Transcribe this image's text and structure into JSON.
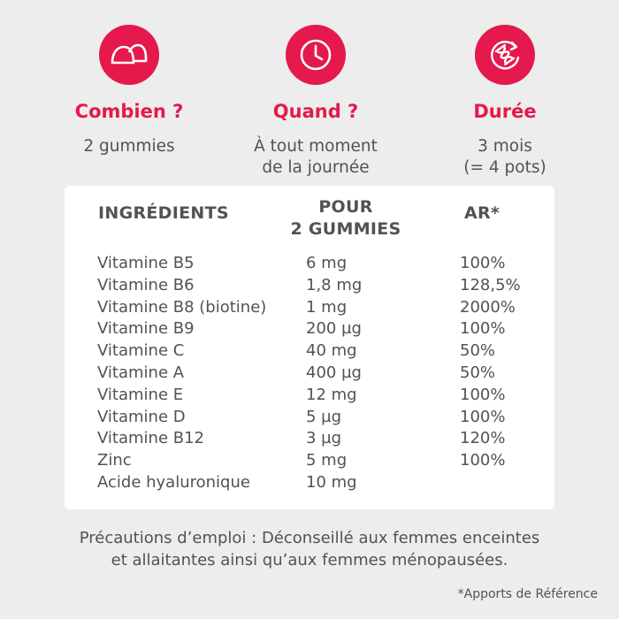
{
  "colors": {
    "accent": "#e5194b",
    "text": "#4f5357",
    "background": "#ededee",
    "card": "#ffffff"
  },
  "info": [
    {
      "icon": "gummies-icon",
      "title": "Combien ?",
      "lines": [
        "2 gummies"
      ]
    },
    {
      "icon": "clock-icon",
      "title": "Quand ?",
      "lines": [
        "À tout moment",
        "de la journée"
      ]
    },
    {
      "icon": "hourglass-icon",
      "title": "Durée",
      "lines": [
        "3 mois",
        "(= 4 pots)"
      ]
    }
  ],
  "table": {
    "headers": {
      "ingredients": "INGRÉDIENTS",
      "pour_line1": "POUR",
      "pour_line2": "2 GUMMIES",
      "ar": "AR*"
    },
    "rows": [
      {
        "name": "Vitamine B5",
        "qty": "6 mg",
        "ar": "100%"
      },
      {
        "name": "Vitamine B6",
        "qty": "1,8 mg",
        "ar": "128,5%"
      },
      {
        "name": "Vitamine B8 (biotine)",
        "qty": "1 mg",
        "ar": "2000%"
      },
      {
        "name": "Vitamine B9",
        "qty": "200 µg",
        "ar": "100%"
      },
      {
        "name": "Vitamine C",
        "qty": "40 mg",
        "ar": "50%"
      },
      {
        "name": "Vitamine A",
        "qty": "400 µg",
        "ar": "50%"
      },
      {
        "name": "Vitamine E",
        "qty": "12 mg",
        "ar": "100%"
      },
      {
        "name": "Vitamine D",
        "qty": "5 µg",
        "ar": "100%"
      },
      {
        "name": "Vitamine B12",
        "qty": "3 µg",
        "ar": "120%"
      },
      {
        "name": "Zinc",
        "qty": "5 mg",
        "ar": "100%"
      },
      {
        "name": "Acide hyaluronique",
        "qty": "10 mg",
        "ar": ""
      }
    ]
  },
  "precautions": [
    "Précautions d’emploi : Déconseillé aux femmes enceintes",
    "et allaitantes ainsi qu’aux femmes ménopausées."
  ],
  "footnote": "*Apports de Référence"
}
